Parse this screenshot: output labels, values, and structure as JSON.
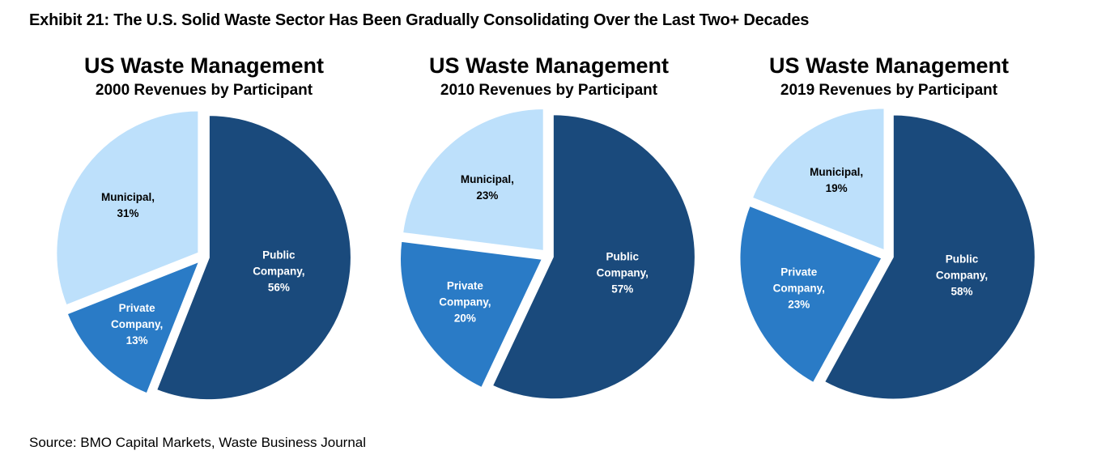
{
  "exhibit_title": "Exhibit 21: The U.S. Solid Waste Sector Has Been Gradually Consolidating Over the Last Two+ Decades",
  "source": "Source: BMO Capital Markets, Waste Business Journal",
  "colors": {
    "public_company": "#1a4a7c",
    "private_company": "#2a7bc6",
    "municipal": "#bde0fb"
  },
  "chart_data": [
    {
      "type": "pie",
      "title": "US Waste Management",
      "subtitle": "2000 Revenues by Participant",
      "slices": [
        {
          "key": "public",
          "label_line1": "Public",
          "label_line2": "Company,",
          "pct_label": "56%",
          "value": 56
        },
        {
          "key": "private",
          "label_line1": "Private",
          "label_line2": "Company,",
          "pct_label": "13%",
          "value": 13
        },
        {
          "key": "municipal",
          "label_line1": "Municipal,",
          "label_line2": "",
          "pct_label": "31%",
          "value": 31
        }
      ]
    },
    {
      "type": "pie",
      "title": "US Waste Management",
      "subtitle": "2010 Revenues by Participant",
      "slices": [
        {
          "key": "public",
          "label_line1": "Public",
          "label_line2": "Company,",
          "pct_label": "57%",
          "value": 57
        },
        {
          "key": "private",
          "label_line1": "Private",
          "label_line2": "Company,",
          "pct_label": "20%",
          "value": 20
        },
        {
          "key": "municipal",
          "label_line1": "Municipal,",
          "label_line2": "",
          "pct_label": "23%",
          "value": 23
        }
      ]
    },
    {
      "type": "pie",
      "title": "US Waste Management",
      "subtitle": "2019 Revenues by Participant",
      "slices": [
        {
          "key": "public",
          "label_line1": "Public",
          "label_line2": "Company,",
          "pct_label": "58%",
          "value": 58
        },
        {
          "key": "private",
          "label_line1": "Private",
          "label_line2": "Company,",
          "pct_label": "23%",
          "value": 23
        },
        {
          "key": "municipal",
          "label_line1": "Municipal,",
          "label_line2": "",
          "pct_label": "19%",
          "value": 19
        }
      ]
    }
  ]
}
